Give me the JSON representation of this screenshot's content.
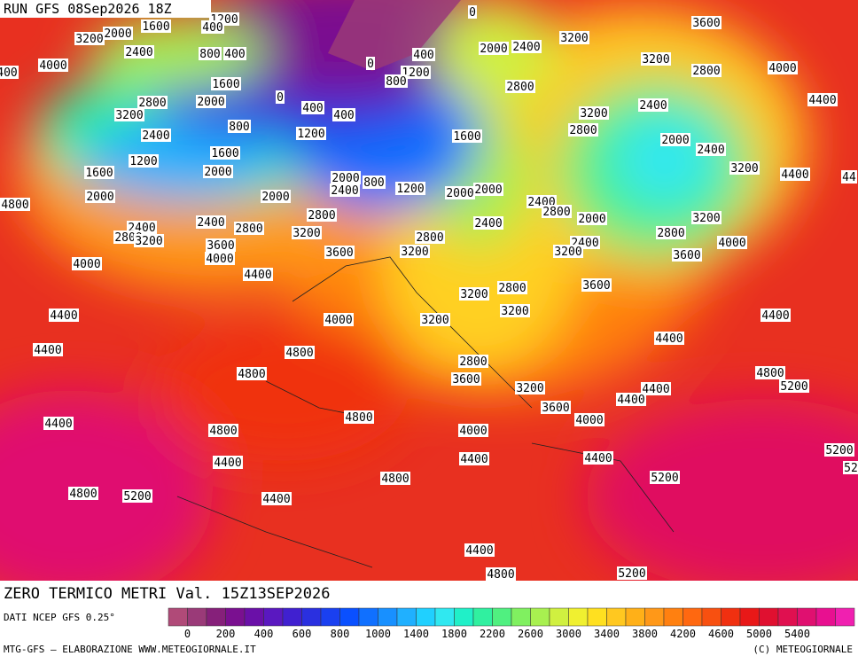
{
  "header": {
    "run": "RUN GFS 08Sep2026 18Z",
    "title": "ZERO TERMICO METRI Val. 15Z13SEP2026",
    "source": "DATI NCEP GFS 0.25°",
    "credit": "MTG-GFS — ELABORAZIONE WWW.METEOGIORNALE.IT",
    "copyright": "(C) METEOGIORNALE"
  },
  "colorbar": {
    "colors": [
      "#b04a78",
      "#9a3a78",
      "#86207a",
      "#7a1090",
      "#6a10a8",
      "#5a18c0",
      "#4020d0",
      "#2a30e0",
      "#1a40f0",
      "#0a50ff",
      "#1070ff",
      "#1890ff",
      "#20b0ff",
      "#20d0ff",
      "#30e8f0",
      "#20f0c8",
      "#30f0a0",
      "#50f080",
      "#80f060",
      "#a8f050",
      "#d0f040",
      "#f0f030",
      "#ffe020",
      "#ffc820",
      "#ffb018",
      "#ff9818",
      "#ff8010",
      "#ff6810",
      "#f85010",
      "#f03010",
      "#e81818",
      "#e01030",
      "#e01050",
      "#e01070",
      "#e81090",
      "#f020b0"
    ],
    "ticks": [
      0,
      200,
      400,
      600,
      800,
      1000,
      1400,
      1800,
      2200,
      2600,
      3000,
      3400,
      3800,
      4200,
      4600,
      5000,
      5400
    ]
  },
  "contours": [
    "1200",
    "1600",
    "400",
    "3200",
    "2000",
    "2400",
    "800",
    "400",
    "4000",
    "400",
    "1600",
    "2800",
    "2000",
    "3200",
    "0",
    "400",
    "400",
    "800",
    "2400",
    "1200",
    "1200",
    "1600",
    "1600",
    "2000",
    "2000",
    "4800",
    "2400",
    "2800",
    "3200",
    "2400",
    "2800",
    "2000",
    "2800",
    "3200",
    "2000",
    "2400",
    "800",
    "1200",
    "3600",
    "4000",
    "4000",
    "4400",
    "3600",
    "0",
    "400",
    "0",
    "1200",
    "800",
    "2000",
    "2400",
    "3200",
    "3600",
    "3200",
    "2800",
    "4000",
    "2800",
    "3200",
    "2400",
    "2800",
    "4400",
    "1600",
    "2000",
    "2400",
    "3200",
    "4400",
    "44",
    "2000",
    "2000",
    "2400",
    "2800",
    "2000",
    "3200",
    "2400",
    "2800",
    "3200",
    "2400",
    "3200",
    "2800",
    "4000",
    "3600",
    "3200",
    "2800",
    "3600",
    "3200",
    "4400",
    "4000",
    "3200",
    "4400",
    "4400",
    "4400",
    "4800",
    "2800",
    "3600",
    "4800",
    "4800",
    "5200",
    "3200",
    "4400",
    "4400",
    "4800",
    "3600",
    "4000",
    "4400",
    "4800",
    "4000",
    "5200",
    "4400",
    "4400",
    "4400",
    "52",
    "4800",
    "5200",
    "4800",
    "5200",
    "4400",
    "4400",
    "4800",
    "5200",
    "4800"
  ]
}
